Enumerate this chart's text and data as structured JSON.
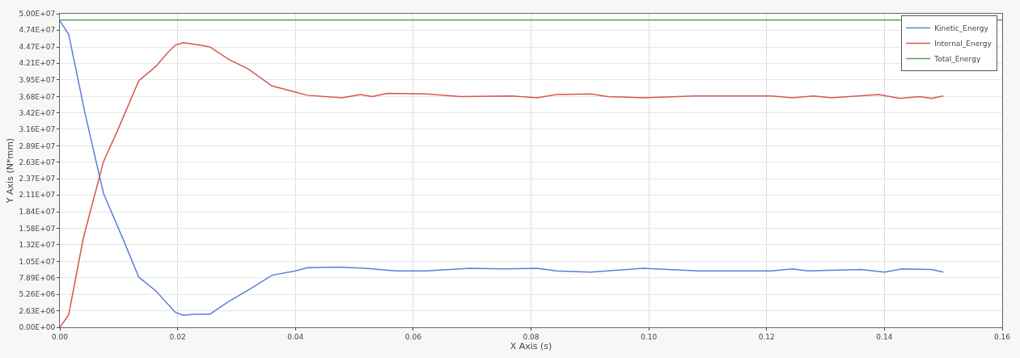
{
  "chart_data": {
    "type": "line",
    "xlabel": "X Axis (s)",
    "ylabel": "Y Axis (N*mm)",
    "xlim": [
      0,
      0.16
    ],
    "xticks": [
      {
        "value": 0,
        "label": "0.00"
      },
      {
        "value": 0.02,
        "label": "0.02"
      },
      {
        "value": 0.04,
        "label": "0.04"
      },
      {
        "value": 0.06,
        "label": "0.06"
      },
      {
        "value": 0.08,
        "label": "0.08"
      },
      {
        "value": 0.1,
        "label": "0.10"
      },
      {
        "value": 0.12,
        "label": "0.12"
      },
      {
        "value": 0.14,
        "label": "0.14"
      },
      {
        "value": 0.16,
        "label": "0.16"
      }
    ],
    "ylim": [
      0,
      50000000
    ],
    "yticks": [
      {
        "value": 0,
        "label": "0.00E+00"
      },
      {
        "value": 2630000,
        "label": "2.63E+06"
      },
      {
        "value": 5260000,
        "label": "5.26E+06"
      },
      {
        "value": 7890000,
        "label": "7.89E+06"
      },
      {
        "value": 10500000,
        "label": "1.05E+07"
      },
      {
        "value": 13200000,
        "label": "1.32E+07"
      },
      {
        "value": 15800000,
        "label": "1.58E+07"
      },
      {
        "value": 18400000,
        "label": "1.84E+07"
      },
      {
        "value": 21100000,
        "label": "2.11E+07"
      },
      {
        "value": 23700000,
        "label": "2.37E+07"
      },
      {
        "value": 26300000,
        "label": "2.63E+07"
      },
      {
        "value": 28900000,
        "label": "2.89E+07"
      },
      {
        "value": 31600000,
        "label": "3.16E+07"
      },
      {
        "value": 34200000,
        "label": "3.42E+07"
      },
      {
        "value": 36800000,
        "label": "3.68E+07"
      },
      {
        "value": 39500000,
        "label": "3.95E+07"
      },
      {
        "value": 42100000,
        "label": "4.21E+07"
      },
      {
        "value": 44700000,
        "label": "4.47E+07"
      },
      {
        "value": 47400000,
        "label": "4.74E+07"
      },
      {
        "value": 50000000,
        "label": "5.00E+07"
      }
    ],
    "grid": true,
    "legend": "top right",
    "marker": "none",
    "line_style": "solid",
    "series": [
      {
        "name": "Kinetic_Energy",
        "color": "#5b7fd6",
        "x": [
          0,
          0.0015,
          0.0043,
          0.0074,
          0.0108,
          0.0134,
          0.0163,
          0.0196,
          0.021,
          0.0228,
          0.0255,
          0.0285,
          0.0328,
          0.036,
          0.04,
          0.042,
          0.0475,
          0.0519,
          0.057,
          0.0622,
          0.0696,
          0.0755,
          0.081,
          0.0843,
          0.0901,
          0.099,
          0.1085,
          0.1208,
          0.1244,
          0.127,
          0.136,
          0.14,
          0.143,
          0.148,
          0.15
        ],
        "values": [
          48900000,
          46700000,
          34000000,
          21400000,
          13900000,
          8000000,
          5800000,
          2400000,
          1900000,
          2100000,
          2100000,
          4000000,
          6400000,
          8300000,
          9000000,
          9500000,
          9600000,
          9400000,
          9000000,
          9000000,
          9400000,
          9300000,
          9400000,
          9000000,
          8800000,
          9400000,
          9000000,
          9000000,
          9300000,
          9000000,
          9200000,
          8800000,
          9300000,
          9200000,
          8800000
        ]
      },
      {
        "name": "Internal_Energy",
        "color": "#d6564f",
        "x": [
          0,
          0.0015,
          0.004,
          0.0074,
          0.0098,
          0.0134,
          0.0163,
          0.0182,
          0.0196,
          0.021,
          0.0237,
          0.0255,
          0.0287,
          0.032,
          0.036,
          0.04,
          0.042,
          0.0479,
          0.051,
          0.053,
          0.0556,
          0.0622,
          0.068,
          0.0768,
          0.081,
          0.0843,
          0.0901,
          0.093,
          0.099,
          0.1077,
          0.1208,
          0.1244,
          0.128,
          0.131,
          0.139,
          0.1427,
          0.146,
          0.148,
          0.15
        ],
        "values": [
          0,
          2000000,
          14300000,
          26400000,
          31400000,
          39300000,
          41600000,
          43700000,
          45000000,
          45400000,
          45000000,
          44700000,
          42700000,
          41200000,
          38500000,
          37500000,
          37000000,
          36600000,
          37100000,
          36800000,
          37300000,
          37200000,
          36800000,
          36900000,
          36600000,
          37100000,
          37200000,
          36800000,
          36600000,
          36900000,
          36900000,
          36600000,
          36900000,
          36600000,
          37100000,
          36500000,
          36800000,
          36500000,
          36900000
        ]
      },
      {
        "name": "Total_Energy",
        "color": "#5aa55a",
        "x": [
          0,
          0.16
        ],
        "values": [
          49000000,
          49000000
        ]
      }
    ]
  }
}
